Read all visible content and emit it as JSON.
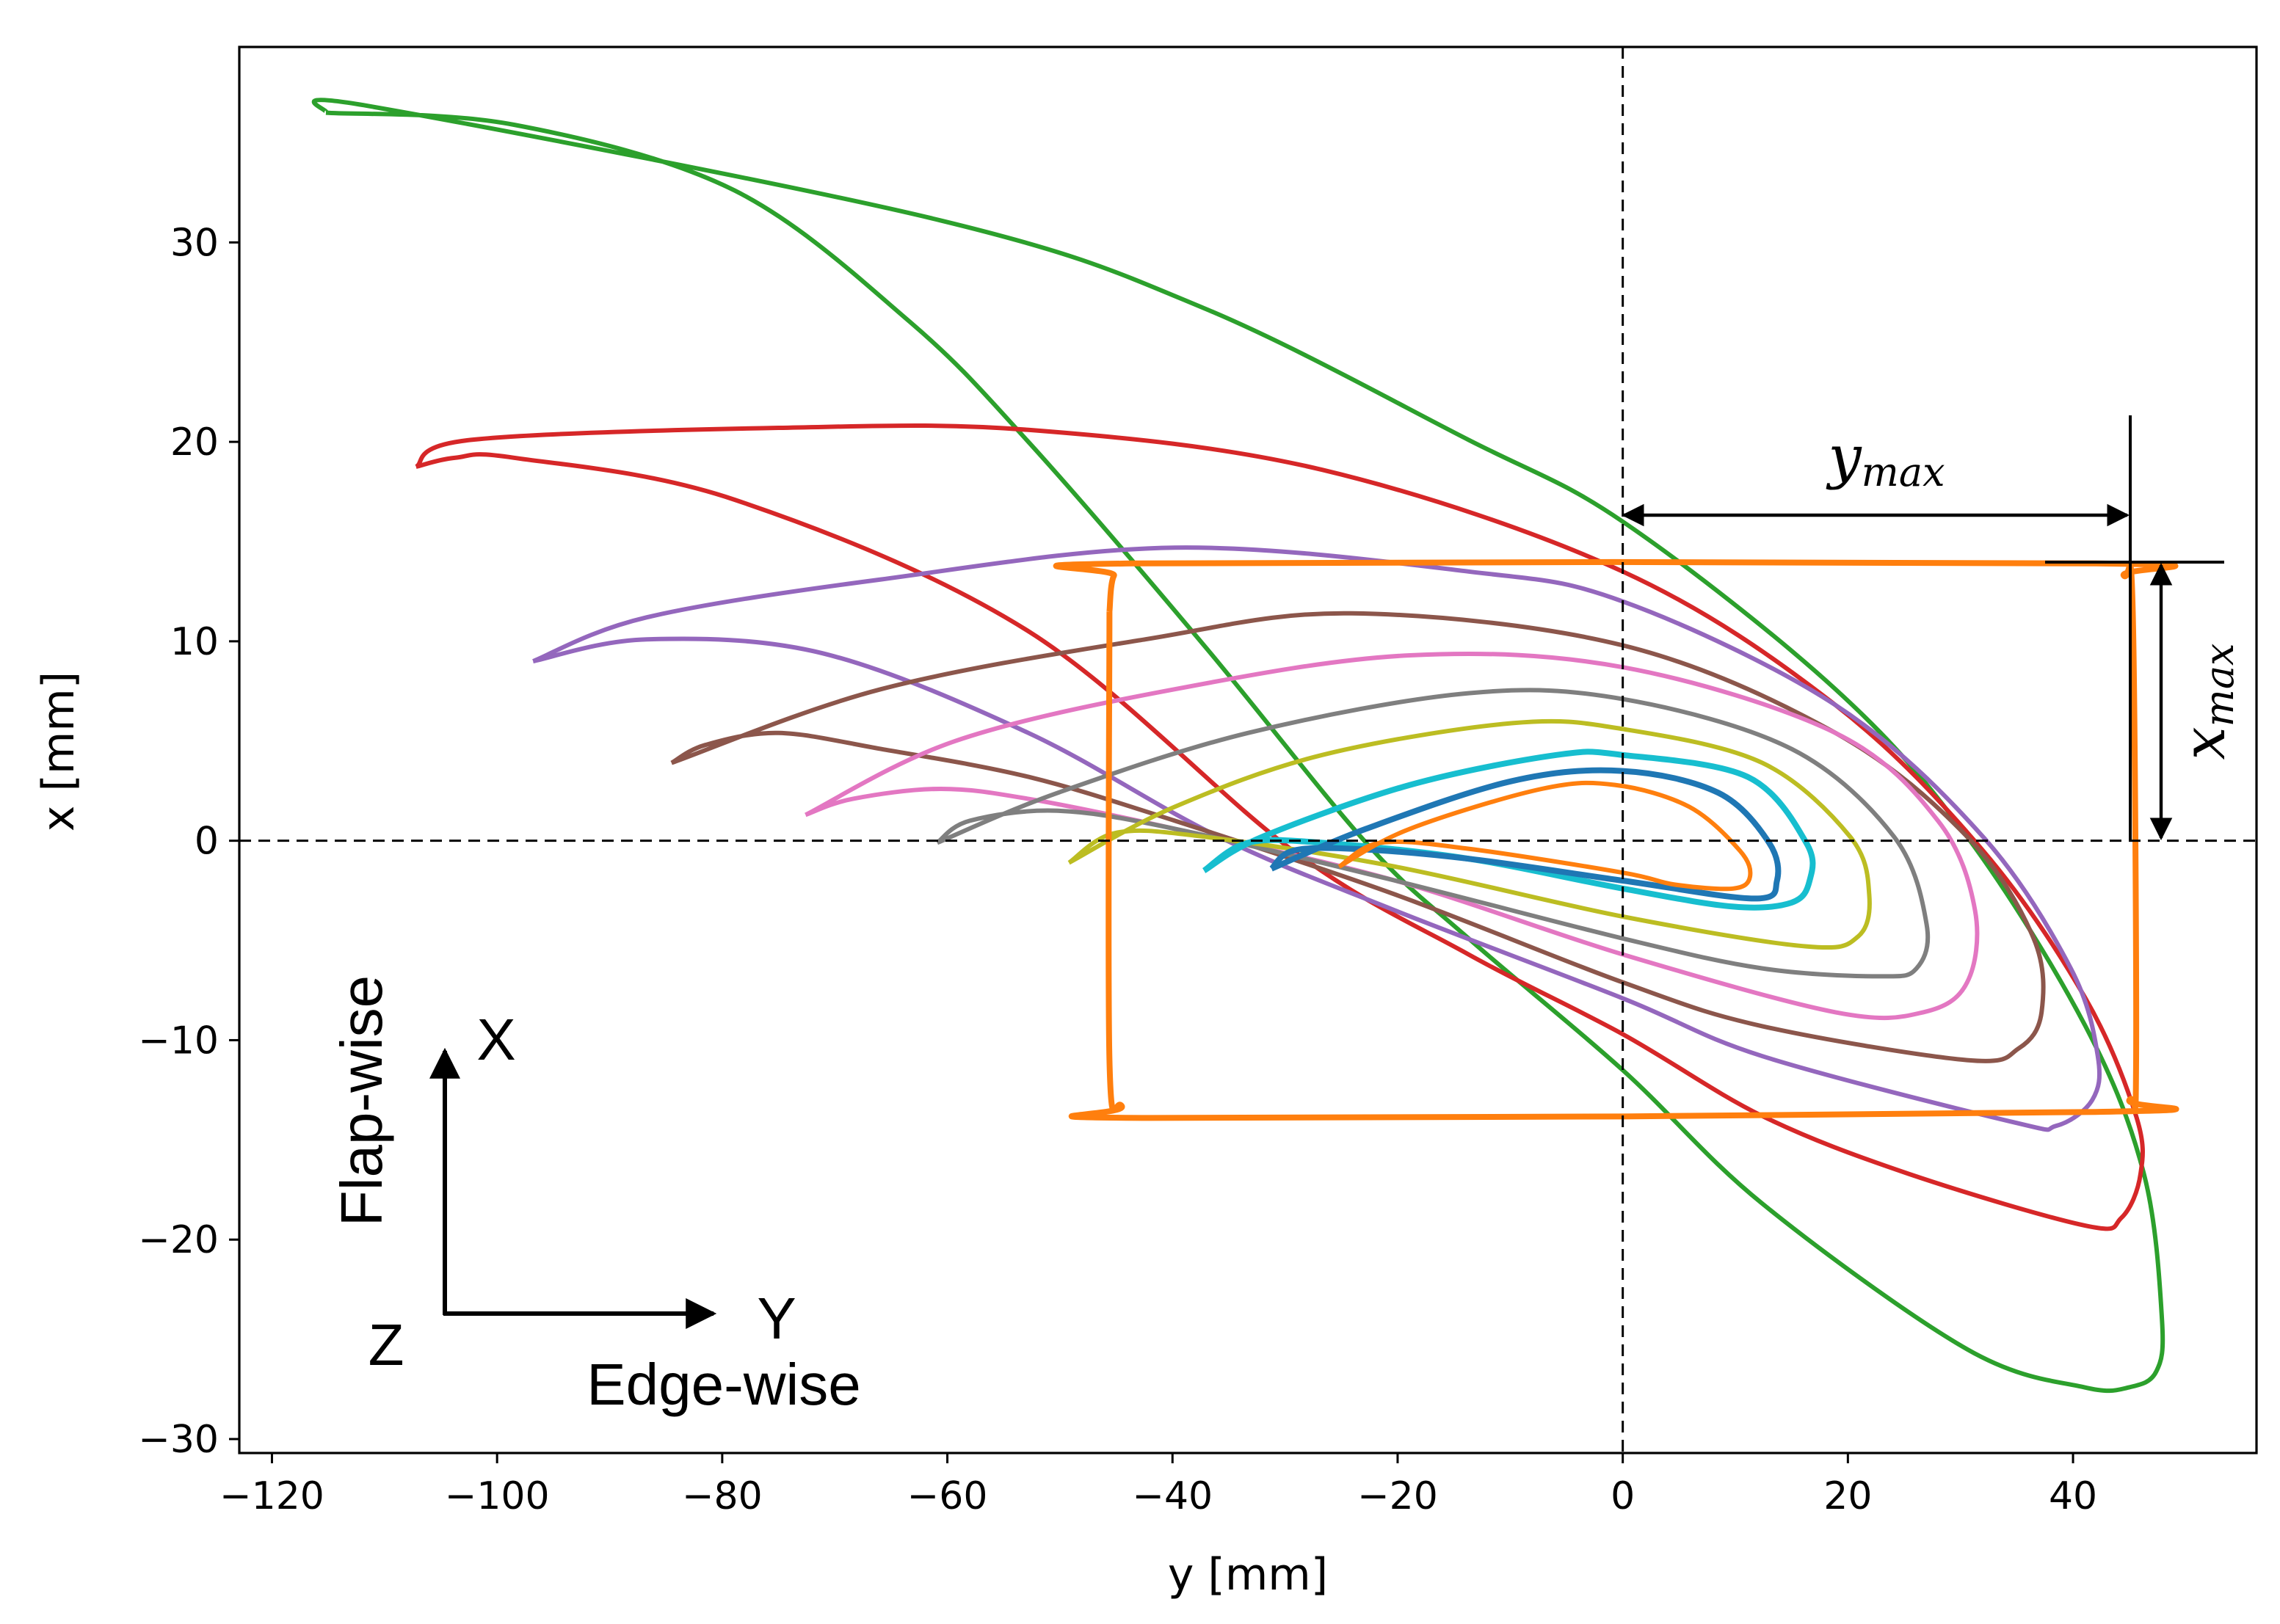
{
  "chart_data": {
    "type": "line",
    "title": "",
    "xlabel": "y [mm]",
    "ylabel": "x [mm]",
    "xlim": [
      -122.9,
      56.3
    ],
    "ylim": [
      -30.7,
      39.8
    ],
    "xticks": [
      -120,
      -100,
      -80,
      -60,
      -40,
      -20,
      0,
      20,
      40
    ],
    "yticks": [
      -30,
      -20,
      -10,
      0,
      10,
      20,
      30
    ],
    "xtick_labels": [
      "−120",
      "−100",
      "−80",
      "−60",
      "−40",
      "−20",
      "0",
      "20",
      "40"
    ],
    "ytick_labels": [
      "−30",
      "−20",
      "−10",
      "0",
      "10",
      "20",
      "30"
    ],
    "grid": false,
    "series": [
      {
        "color": "#2ca02c",
        "points": [
          [
            -115.2,
            36.5
          ],
          [
            -111,
            36.8
          ],
          [
            -60.6,
            31.1
          ],
          [
            -37.2,
            26.7
          ],
          [
            -13.7,
            20.1
          ],
          [
            0,
            16.0
          ],
          [
            18.9,
            7.6
          ],
          [
            30.6,
            0.2
          ],
          [
            41.1,
            -9.3
          ],
          [
            46.3,
            -16.7
          ],
          [
            47.9,
            -24
          ],
          [
            47.4,
            -26.6
          ],
          [
            45,
            -27.4
          ],
          [
            41,
            -27.4
          ],
          [
            30.6,
            -25.5
          ],
          [
            12.4,
            -18.2
          ],
          [
            0,
            -11.5
          ],
          [
            -13.7,
            -4.9
          ],
          [
            -22.8,
            -0.1
          ],
          [
            -37.2,
            9.8
          ],
          [
            -52.8,
            20
          ],
          [
            -63.3,
            26
          ],
          [
            -78.9,
            32.6
          ],
          [
            -98.5,
            35.9
          ],
          [
            -115.2,
            36.5
          ]
        ]
      },
      {
        "color": "#d62728",
        "points": [
          [
            -107.2,
            18.75
          ],
          [
            -102.3,
            20.1
          ],
          [
            -75,
            20.7
          ],
          [
            -52.8,
            20.6
          ],
          [
            -26.7,
            18.6
          ],
          [
            0,
            13.5
          ],
          [
            18.9,
            6.8
          ],
          [
            32,
            -0.5
          ],
          [
            41.1,
            -7.9
          ],
          [
            45.6,
            -13.8
          ],
          [
            46,
            -16.7
          ],
          [
            44.3,
            -18.9
          ],
          [
            41.1,
            -19.3
          ],
          [
            25.4,
            -16.7
          ],
          [
            12.4,
            -13.8
          ],
          [
            0,
            -9.7
          ],
          [
            -13.7,
            -5.7
          ],
          [
            -29.3,
            -0.5
          ],
          [
            -52.8,
            10.5
          ],
          [
            -78.9,
            17.1
          ],
          [
            -98.5,
            19.2
          ],
          [
            -103.7,
            19.2
          ],
          [
            -107.2,
            18.75
          ]
        ]
      },
      {
        "color": "#9467bd",
        "points": [
          [
            -96.8,
            9.0
          ],
          [
            -86.7,
            11.2
          ],
          [
            -65.9,
            13.1
          ],
          [
            -39.8,
            14.7
          ],
          [
            -13.7,
            13.5
          ],
          [
            0,
            12
          ],
          [
            18.9,
            6.8
          ],
          [
            32,
            0.2
          ],
          [
            39.8,
            -6.4
          ],
          [
            42.2,
            -10.8
          ],
          [
            41.7,
            -13
          ],
          [
            38.5,
            -14.3
          ],
          [
            34.6,
            -14.1
          ],
          [
            12.4,
            -10.8
          ],
          [
            0,
            -7.9
          ],
          [
            -20.2,
            -3.5
          ],
          [
            -35.9,
            0.2
          ],
          [
            -52.8,
            5.4
          ],
          [
            -71.1,
            9.4
          ],
          [
            -86.7,
            10.1
          ],
          [
            -96.8,
            9.0
          ]
        ]
      },
      {
        "color": "#8c564b",
        "points": [
          [
            -84.5,
            3.9
          ],
          [
            -65.9,
            7.6
          ],
          [
            -42.4,
            10.1
          ],
          [
            -24.1,
            11.4
          ],
          [
            0,
            9.8
          ],
          [
            18.9,
            5.4
          ],
          [
            30.6,
            0.2
          ],
          [
            36.5,
            -4.9
          ],
          [
            37.2,
            -8.6
          ],
          [
            35.2,
            -10.4
          ],
          [
            30.6,
            -11
          ],
          [
            12.4,
            -9.3
          ],
          [
            0,
            -7.1
          ],
          [
            -20.2,
            -2.7
          ],
          [
            -39.8,
            1
          ],
          [
            -52.8,
            3.2
          ],
          [
            -65.9,
            4.6
          ],
          [
            -75,
            5.4
          ],
          [
            -81.5,
            4.8
          ],
          [
            -84.5,
            3.9
          ]
        ]
      },
      {
        "color": "#e377c2",
        "points": [
          [
            -72.6,
            1.3
          ],
          [
            -59.3,
            5
          ],
          [
            -39.8,
            7.6
          ],
          [
            -18.9,
            9.3
          ],
          [
            0,
            8.7
          ],
          [
            18.9,
            5.4
          ],
          [
            28,
            1
          ],
          [
            31.3,
            -3.5
          ],
          [
            30.6,
            -7.1
          ],
          [
            26.7,
            -8.6
          ],
          [
            18.9,
            -8.6
          ],
          [
            0,
            -5.7
          ],
          [
            -20.2,
            -2
          ],
          [
            -39.8,
            0.6
          ],
          [
            -52.8,
            2.1
          ],
          [
            -60.6,
            2.6
          ],
          [
            -68.4,
            2.1
          ],
          [
            -72.6,
            1.3
          ]
        ]
      },
      {
        "color": "#7f7f7f",
        "points": [
          [
            -60.9,
            -0.1
          ],
          [
            -50.2,
            2.4
          ],
          [
            -33.3,
            5.4
          ],
          [
            -13.7,
            7.4
          ],
          [
            0,
            7.1
          ],
          [
            15,
            4.6
          ],
          [
            24.1,
            0.2
          ],
          [
            27,
            -4.2
          ],
          [
            26.1,
            -6.4
          ],
          [
            22.8,
            -6.8
          ],
          [
            12.4,
            -6.4
          ],
          [
            0,
            -4.9
          ],
          [
            -20.2,
            -2
          ],
          [
            -39.8,
            0.6
          ],
          [
            -50.2,
            1.5
          ],
          [
            -58,
            1
          ],
          [
            -60.9,
            -0.1
          ]
        ]
      },
      {
        "color": "#bcbd22",
        "points": [
          [
            -49.2,
            -1.1
          ],
          [
            -39.8,
            1.7
          ],
          [
            -26.7,
            4.3
          ],
          [
            -9.8,
            5.9
          ],
          [
            0,
            5.6
          ],
          [
            12.4,
            3.9
          ],
          [
            20.2,
            0.2
          ],
          [
            21.9,
            -2.7
          ],
          [
            20.9,
            -4.8
          ],
          [
            16.3,
            -5.3
          ],
          [
            0,
            -3.8
          ],
          [
            -20.2,
            -1.3
          ],
          [
            -37.2,
            0.2
          ],
          [
            -45,
            0.4
          ],
          [
            -49.2,
            -1.1
          ]
        ]
      },
      {
        "color": "#17becf",
        "points": [
          [
            -37.2,
            -1.5
          ],
          [
            -32,
            0.2
          ],
          [
            -18.9,
            2.8
          ],
          [
            -5.9,
            4.3
          ],
          [
            0,
            4.3
          ],
          [
            11.1,
            3.2
          ],
          [
            16.3,
            -0.1
          ],
          [
            16.6,
            -2
          ],
          [
            15,
            -3.1
          ],
          [
            9.8,
            -3.3
          ],
          [
            0,
            -2.4
          ],
          [
            -13.7,
            -0.9
          ],
          [
            -26.7,
            -0.1
          ],
          [
            -33.3,
            -0.1
          ],
          [
            -37.2,
            -1.5
          ]
        ]
      },
      {
        "color": "#1f77b4",
        "points": [
          [
            -31.2,
            -1.4
          ],
          [
            -22.8,
            0.6
          ],
          [
            -9.8,
            3
          ],
          [
            0,
            3.5
          ],
          [
            8.5,
            2.4
          ],
          [
            13,
            -0.1
          ],
          [
            13.7,
            -2
          ],
          [
            11.7,
            -2.9
          ],
          [
            0,
            -2
          ],
          [
            -13.7,
            -0.9
          ],
          [
            -24.1,
            -0.4
          ],
          [
            -29.3,
            -0.5
          ],
          [
            -31.2,
            -1.4
          ]
        ]
      },
      {
        "color": "#ff7f0e",
        "points": [
          [
            -25.2,
            -1.3
          ],
          [
            -18.9,
            0.6
          ],
          [
            -7.2,
            2.6
          ],
          [
            -0.7,
            2.8
          ],
          [
            5.9,
            1.7
          ],
          [
            10.4,
            -0.5
          ],
          [
            11.3,
            -1.8
          ],
          [
            9.8,
            -2.4
          ],
          [
            4.6,
            -2.2
          ],
          [
            0,
            -1.6
          ],
          [
            -13.7,
            -0.4
          ],
          [
            -21.5,
            -0.1
          ],
          [
            -25.2,
            -1.3
          ]
        ]
      },
      {
        "color": "#ff7f0e",
        "shape": "rectangle",
        "points": [
          [
            -45.6,
            11.5
          ],
          [
            -45.2,
            13.3
          ],
          [
            -43.5,
            13.9
          ],
          [
            42,
            13.9
          ],
          [
            44.5,
            13.3
          ],
          [
            45.3,
            11.5
          ],
          [
            45.6,
            -11
          ],
          [
            45,
            -13
          ],
          [
            42,
            -13.6
          ],
          [
            -42,
            -13.9
          ],
          [
            -44.5,
            -13.3
          ],
          [
            -45.6,
            -11
          ],
          [
            -45.6,
            11.5
          ]
        ]
      }
    ],
    "reference_lines": {
      "vertical": 0,
      "horizontal": 0
    },
    "annotations": {
      "y_max_label": "y",
      "y_max_sub": "max",
      "x_max_label": "x",
      "x_max_sub": "max",
      "y_max_value": 45,
      "x_max_value": 14
    },
    "triad": {
      "x_axis": "X",
      "y_axis": "Y",
      "z_axis": "Z",
      "flap_label": "Flap-wise",
      "edge_label": "Edge-wise"
    }
  }
}
